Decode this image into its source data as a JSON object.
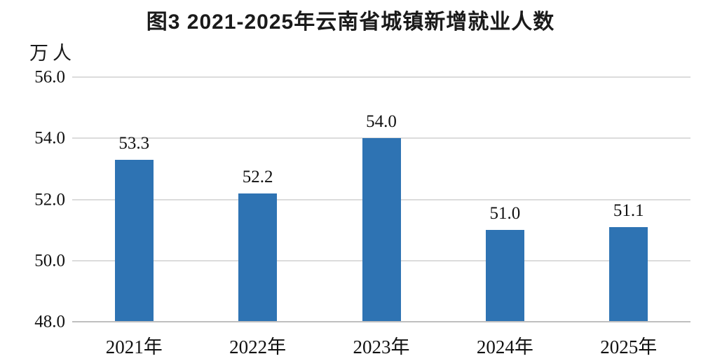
{
  "title": "图3  2021-2025年云南省城镇新增就业人数",
  "unit_label": "万人",
  "colors": {
    "bar": "#2E73B3",
    "gridline": "#DCDCDC",
    "axis_line": "#BFBFBF",
    "text": "#111111",
    "background": "#FFFFFF"
  },
  "chart_data": {
    "type": "bar",
    "title": "图3  2021-2025年云南省城镇新增就业人数",
    "unit": "万人",
    "categories": [
      "2021年",
      "2022年",
      "2023年",
      "2024年",
      "2025年"
    ],
    "values": [
      53.3,
      52.2,
      54.0,
      51.0,
      51.1
    ],
    "value_labels": [
      "53.3",
      "52.2",
      "54.0",
      "51.0",
      "51.1"
    ],
    "yticks": [
      "56.0",
      "54.0",
      "52.0",
      "50.0",
      "48.0"
    ],
    "ylim": [
      48.0,
      56.0
    ],
    "ytick_step": 2.0,
    "grid": "horizontal",
    "legend": "none",
    "bar_color": "#2E73B3"
  }
}
